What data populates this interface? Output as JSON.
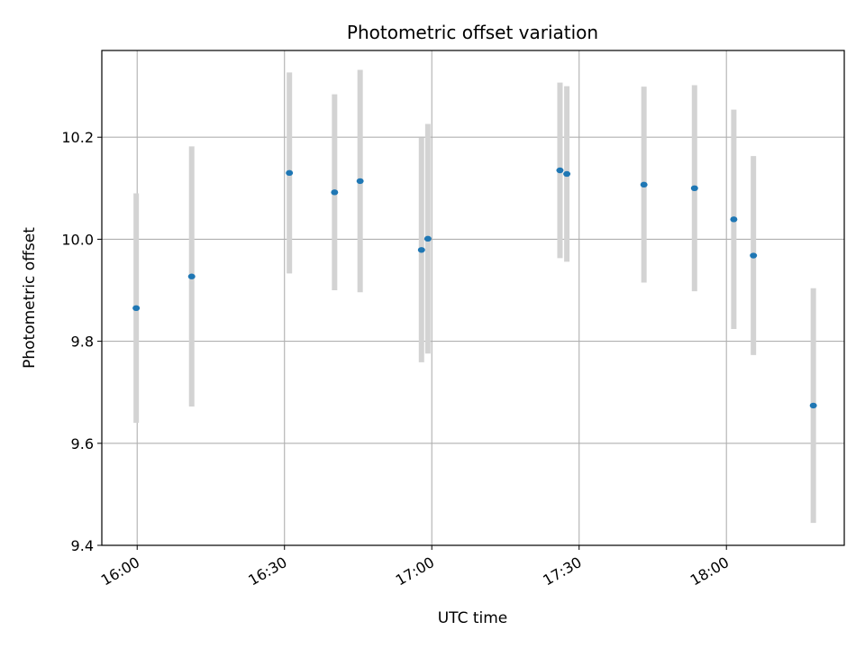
{
  "chart_data": {
    "type": "scatter",
    "title": "Photometric offset variation",
    "xlabel": "UTC time",
    "ylabel": "Photometric offset",
    "x_axis_type": "time",
    "xlim": [
      "15:52:48",
      "18:24:00"
    ],
    "ylim": [
      9.4,
      10.37
    ],
    "grid": true,
    "x_ticks": [
      "16:00",
      "16:30",
      "17:00",
      "17:30",
      "18:00"
    ],
    "y_ticks": [
      9.4,
      9.6,
      9.8,
      10.0,
      10.2
    ],
    "marker_color": "#1f77b4",
    "errorbar_color": "#d3d3d3",
    "points": [
      {
        "time": "15:59:48",
        "value": 9.865,
        "err": 0.225
      },
      {
        "time": "16:11:06",
        "value": 9.927,
        "err": 0.255
      },
      {
        "time": "16:31:00",
        "value": 10.13,
        "err": 0.197
      },
      {
        "time": "16:40:12",
        "value": 10.092,
        "err": 0.192
      },
      {
        "time": "16:45:24",
        "value": 10.114,
        "err": 0.218
      },
      {
        "time": "16:57:54",
        "value": 9.979,
        "err": 0.22
      },
      {
        "time": "16:59:12",
        "value": 10.001,
        "err": 0.225
      },
      {
        "time": "17:26:06",
        "value": 10.135,
        "err": 0.172
      },
      {
        "time": "17:27:30",
        "value": 10.128,
        "err": 0.172
      },
      {
        "time": "17:43:12",
        "value": 10.107,
        "err": 0.192
      },
      {
        "time": "17:53:30",
        "value": 10.1,
        "err": 0.202
      },
      {
        "time": "18:01:30",
        "value": 10.039,
        "err": 0.215
      },
      {
        "time": "18:05:30",
        "value": 9.968,
        "err": 0.195
      },
      {
        "time": "18:17:42",
        "value": 9.674,
        "err": 0.23
      }
    ]
  }
}
